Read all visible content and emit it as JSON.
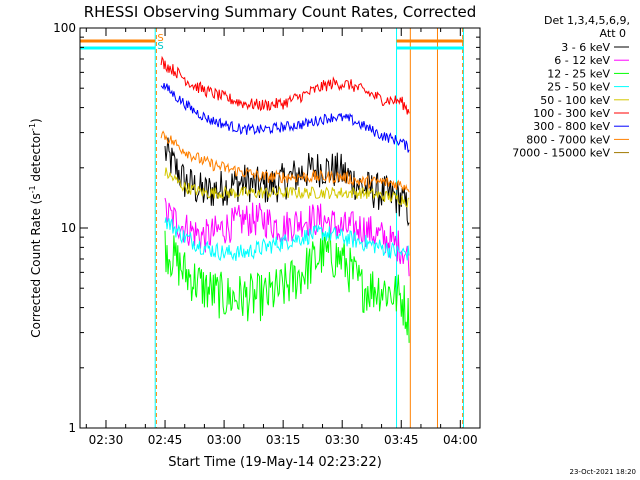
{
  "chart_data": {
    "type": "line",
    "title": "RHESSI Observing Summary Count Rates, Corrected",
    "xlabel": "Start Time (19-May-14 02:23:22)",
    "ylabel_main": "Corrected Count Rate (s",
    "ylabel_sup1": "-1",
    "ylabel_mid": " detector",
    "ylabel_sup2": "-1",
    "ylabel_end": ")",
    "x_ticks": [
      "02:30",
      "02:45",
      "03:00",
      "03:15",
      "03:30",
      "03:45",
      "04:00"
    ],
    "x_tick_minutes": [
      150,
      165,
      180,
      195,
      210,
      225,
      240
    ],
    "xlim_minutes": [
      143.4,
      245.0
    ],
    "y_ticks": [
      "1",
      "10",
      "100"
    ],
    "y_tick_values": [
      1,
      10,
      100
    ],
    "ylim": [
      1,
      100
    ],
    "y_scale": "log",
    "legend_header": "Det 1,3,4,5,6,9,",
    "legend_att": "Att 0",
    "footer_date": "23-Oct-2021 18:20",
    "flag_labels": [
      "S",
      "S"
    ],
    "vertical_markers_minutes": {
      "cyan": [
        143.4,
        162.5,
        223.8,
        240.8
      ],
      "orange_dashed": [
        162.8,
        240.6
      ],
      "orange_solid": [
        227.3,
        234.2
      ]
    },
    "series": [
      {
        "name": "3 - 6 keV",
        "color": "#000000",
        "values": [
          [
            165,
            24
          ],
          [
            170,
            17
          ],
          [
            175,
            15
          ],
          [
            180,
            16
          ],
          [
            185,
            17
          ],
          [
            190,
            16
          ],
          [
            195,
            17
          ],
          [
            200,
            19
          ],
          [
            205,
            20
          ],
          [
            210,
            19
          ],
          [
            215,
            16
          ],
          [
            220,
            15
          ],
          [
            225,
            14
          ],
          [
            227,
            12
          ]
        ]
      },
      {
        "name": "6 - 12 keV",
        "color": "#ff00ff",
        "values": [
          [
            165,
            12
          ],
          [
            170,
            10
          ],
          [
            175,
            9
          ],
          [
            180,
            10
          ],
          [
            185,
            11
          ],
          [
            190,
            11
          ],
          [
            195,
            10
          ],
          [
            200,
            11
          ],
          [
            205,
            11
          ],
          [
            210,
            10
          ],
          [
            215,
            10
          ],
          [
            220,
            9
          ],
          [
            225,
            8
          ],
          [
            227,
            7
          ]
        ]
      },
      {
        "name": "12 - 25 keV",
        "color": "#00ff00",
        "values": [
          [
            165,
            8
          ],
          [
            170,
            6
          ],
          [
            175,
            5
          ],
          [
            180,
            4.5
          ],
          [
            185,
            4.5
          ],
          [
            190,
            4.5
          ],
          [
            195,
            5
          ],
          [
            200,
            6
          ],
          [
            205,
            7.5
          ],
          [
            210,
            7
          ],
          [
            215,
            5
          ],
          [
            220,
            5
          ],
          [
            225,
            4.5
          ],
          [
            227,
            3.5
          ]
        ]
      },
      {
        "name": "25 - 50 keV",
        "color": "#00ffff",
        "values": [
          [
            165,
            11
          ],
          [
            170,
            9
          ],
          [
            175,
            8
          ],
          [
            180,
            7.5
          ],
          [
            185,
            7.5
          ],
          [
            190,
            8
          ],
          [
            195,
            8.5
          ],
          [
            200,
            9
          ],
          [
            205,
            9.5
          ],
          [
            210,
            9
          ],
          [
            215,
            8.5
          ],
          [
            220,
            8
          ],
          [
            225,
            7.5
          ],
          [
            227,
            7.5
          ]
        ]
      },
      {
        "name": "50 - 100 keV",
        "color": "#d4c800",
        "values": [
          [
            165,
            19
          ],
          [
            170,
            16
          ],
          [
            175,
            15
          ],
          [
            180,
            15
          ],
          [
            185,
            15
          ],
          [
            190,
            15
          ],
          [
            195,
            15
          ],
          [
            200,
            15
          ],
          [
            205,
            15
          ],
          [
            210,
            15
          ],
          [
            215,
            15
          ],
          [
            220,
            14.5
          ],
          [
            225,
            14
          ],
          [
            227,
            13.5
          ]
        ]
      },
      {
        "name": "100 - 300 keV",
        "color": "#ff0000",
        "values": [
          [
            164,
            68
          ],
          [
            168,
            60
          ],
          [
            172,
            52
          ],
          [
            176,
            48
          ],
          [
            180,
            45
          ],
          [
            185,
            42
          ],
          [
            190,
            41
          ],
          [
            195,
            42
          ],
          [
            200,
            46
          ],
          [
            205,
            51
          ],
          [
            208,
            53
          ],
          [
            212,
            52
          ],
          [
            216,
            48
          ],
          [
            220,
            44
          ],
          [
            225,
            43
          ],
          [
            227,
            38
          ]
        ]
      },
      {
        "name": "300 - 800 keV",
        "color": "#0000ff",
        "values": [
          [
            164,
            53
          ],
          [
            168,
            45
          ],
          [
            172,
            39
          ],
          [
            176,
            35
          ],
          [
            180,
            33
          ],
          [
            185,
            31
          ],
          [
            190,
            31
          ],
          [
            195,
            32
          ],
          [
            200,
            33
          ],
          [
            205,
            35
          ],
          [
            208,
            36
          ],
          [
            212,
            35
          ],
          [
            216,
            32
          ],
          [
            220,
            29
          ],
          [
            225,
            27
          ],
          [
            227,
            25
          ]
        ]
      },
      {
        "name": "800 - 7000 keV",
        "color": "#ff8000",
        "values": [
          [
            164,
            30
          ],
          [
            168,
            26
          ],
          [
            172,
            23
          ],
          [
            176,
            21
          ],
          [
            180,
            20
          ],
          [
            185,
            19
          ],
          [
            190,
            18
          ],
          [
            195,
            18
          ],
          [
            200,
            18
          ],
          [
            205,
            18
          ],
          [
            210,
            18
          ],
          [
            215,
            17
          ],
          [
            220,
            17
          ],
          [
            225,
            16.5
          ],
          [
            227,
            16
          ]
        ]
      },
      {
        "name": "7000 - 15000 keV",
        "color": "#a07800",
        "values": []
      }
    ]
  }
}
